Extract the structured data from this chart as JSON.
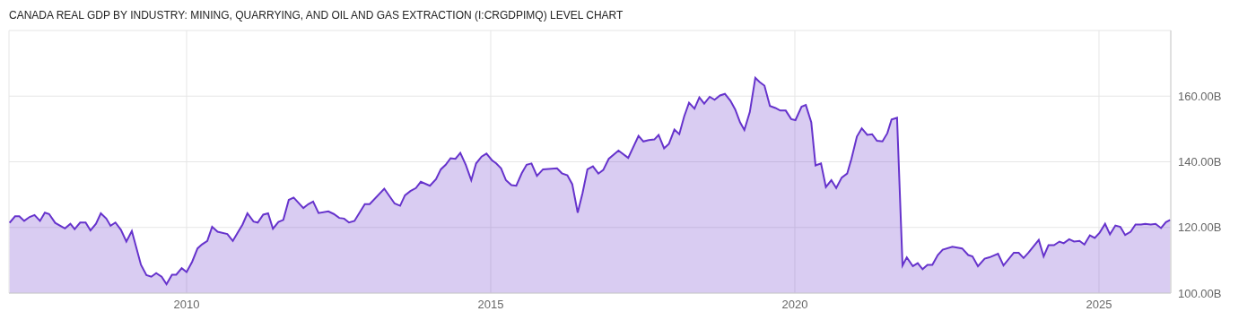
{
  "chart_data": {
    "type": "area",
    "title": "CANADA REAL GDP BY INDUSTRY: MINING, QUARRYING, AND OIL AND GAS EXTRACTION (I:CRGDPIMQ) LEVEL CHART",
    "x": [
      2007.09,
      2007.18,
      2007.25,
      2007.33,
      2007.42,
      2007.5,
      2007.59,
      2007.67,
      2007.74,
      2007.84,
      2008.0,
      2008.09,
      2008.16,
      2008.25,
      2008.34,
      2008.42,
      2008.51,
      2008.59,
      2008.68,
      2008.75,
      2008.83,
      2008.92,
      2009.01,
      2009.1,
      2009.25,
      2009.34,
      2009.42,
      2009.5,
      2009.59,
      2009.67,
      2009.76,
      2009.83,
      2009.92,
      2010.0,
      2010.09,
      2010.18,
      2010.25,
      2010.34,
      2010.42,
      2010.51,
      2010.67,
      2010.76,
      2010.92,
      2011.0,
      2011.1,
      2011.17,
      2011.26,
      2011.34,
      2011.42,
      2011.51,
      2011.59,
      2011.68,
      2011.76,
      2011.92,
      2012.0,
      2012.08,
      2012.17,
      2012.33,
      2012.42,
      2012.51,
      2012.59,
      2012.67,
      2012.76,
      2012.93,
      2013.01,
      2013.25,
      2013.42,
      2013.51,
      2013.59,
      2013.68,
      2013.77,
      2013.85,
      2014.0,
      2014.1,
      2014.18,
      2014.26,
      2014.34,
      2014.42,
      2014.5,
      2014.59,
      2014.68,
      2014.76,
      2014.85,
      2014.93,
      2015.02,
      2015.09,
      2015.17,
      2015.25,
      2015.34,
      2015.42,
      2015.51,
      2015.59,
      2015.67,
      2015.76,
      2015.86,
      2016.09,
      2016.17,
      2016.26,
      2016.34,
      2016.43,
      2016.51,
      2016.59,
      2016.68,
      2016.77,
      2016.85,
      2016.94,
      2017.1,
      2017.26,
      2017.43,
      2017.51,
      2017.6,
      2017.69,
      2017.76,
      2017.85,
      2017.93,
      2018.02,
      2018.1,
      2018.18,
      2018.26,
      2018.35,
      2018.43,
      2018.51,
      2018.6,
      2018.68,
      2018.77,
      2018.85,
      2018.94,
      2019.02,
      2019.1,
      2019.17,
      2019.26,
      2019.35,
      2019.42,
      2019.5,
      2019.59,
      2019.68,
      2019.76,
      2019.85,
      2019.94,
      2020.01,
      2020.11,
      2020.18,
      2020.27,
      2020.34,
      2020.43,
      2020.51,
      2020.6,
      2020.68,
      2020.77,
      2020.86,
      2020.93,
      2021.02,
      2021.1,
      2021.19,
      2021.27,
      2021.35,
      2021.44,
      2021.52,
      2021.59,
      2021.68,
      2021.77,
      2021.84,
      2021.94,
      2022.02,
      2022.1,
      2022.18,
      2022.26,
      2022.35,
      2022.43,
      2022.59,
      2022.75,
      2022.85,
      2022.92,
      2023.01,
      2023.12,
      2023.2,
      2023.34,
      2023.43,
      2023.6,
      2023.68,
      2023.76,
      2023.84,
      2024.01,
      2024.09,
      2024.17,
      2024.26,
      2024.35,
      2024.42,
      2024.51,
      2024.59,
      2024.68,
      2024.76,
      2024.85,
      2024.93,
      2025.01,
      2025.1,
      2025.18,
      2025.27,
      2025.35,
      2025.43,
      2025.52,
      2025.6,
      2025.69,
      2025.76,
      2025.85,
      2025.93,
      2026.02,
      2026.1,
      2026.17
    ],
    "series": [
      {
        "color": "#6633cc",
        "values": [
          121.4,
          123.4,
          123.4,
          122.0,
          123.2,
          123.8,
          122.0,
          124.5,
          124.1,
          121.4,
          119.7,
          121.1,
          119.5,
          121.5,
          121.5,
          119.1,
          121.1,
          124.3,
          122.7,
          120.5,
          121.5,
          119.3,
          115.7,
          118.9,
          108.6,
          105.5,
          105.0,
          106.1,
          105.0,
          102.7,
          105.6,
          105.6,
          107.6,
          106.4,
          109.5,
          113.6,
          114.8,
          115.9,
          120.2,
          118.7,
          118.0,
          115.9,
          120.9,
          124.3,
          121.8,
          121.5,
          123.9,
          124.3,
          119.6,
          121.7,
          122.3,
          128.4,
          129.1,
          125.9,
          127.1,
          127.9,
          124.4,
          124.9,
          124.1,
          122.9,
          122.7,
          121.5,
          122.0,
          127.1,
          127.1,
          131.8,
          127.3,
          126.6,
          129.8,
          131.1,
          132.0,
          133.9,
          132.7,
          134.7,
          137.7,
          139.1,
          141.1,
          140.9,
          142.7,
          139.1,
          134.4,
          139.5,
          141.6,
          142.5,
          140.5,
          139.5,
          138.0,
          134.4,
          132.9,
          132.7,
          136.5,
          139.1,
          139.5,
          135.7,
          137.7,
          138.0,
          136.5,
          135.9,
          133.2,
          124.5,
          130.5,
          137.7,
          138.6,
          136.4,
          137.5,
          140.9,
          143.4,
          141.2,
          147.9,
          146.2,
          146.6,
          146.8,
          148.2,
          144.1,
          145.5,
          149.8,
          148.4,
          153.8,
          158.0,
          156.2,
          159.6,
          157.7,
          159.8,
          158.9,
          160.2,
          160.7,
          158.6,
          155.9,
          152.0,
          149.7,
          155.2,
          165.6,
          164.3,
          163.2,
          157.0,
          156.4,
          155.6,
          155.6,
          153.0,
          152.7,
          156.8,
          157.3,
          152.0,
          138.9,
          139.5,
          132.3,
          134.4,
          132.0,
          135.2,
          136.4,
          140.9,
          147.7,
          150.2,
          148.2,
          148.4,
          146.4,
          146.2,
          148.7,
          152.9,
          153.4,
          108.4,
          110.9,
          108.2,
          109.1,
          107.3,
          108.6,
          108.6,
          111.6,
          113.2,
          114.1,
          113.6,
          111.6,
          111.2,
          108.2,
          110.5,
          110.9,
          112.0,
          108.4,
          112.3,
          112.3,
          110.7,
          112.3,
          116.2,
          111.2,
          114.6,
          114.6,
          115.7,
          115.2,
          116.4,
          115.7,
          115.9,
          114.8,
          117.6,
          116.8,
          118.4,
          121.1,
          117.9,
          120.6,
          120.2,
          117.7,
          118.7,
          120.9,
          120.9,
          121.1,
          120.9,
          121.1,
          119.8,
          121.6,
          122.3
        ]
      }
    ],
    "xlim": [
      2007.08,
      2026.18
    ],
    "xticks": [
      2010,
      2015,
      2020,
      2025
    ],
    "ylim": [
      100,
      180
    ],
    "yticks": [
      {
        "value": 100,
        "label": "100.00B"
      },
      {
        "value": 120,
        "label": "120.00B"
      },
      {
        "value": 140,
        "label": "140.00B"
      },
      {
        "value": 160,
        "label": "160.00B"
      }
    ],
    "grid": true
  }
}
